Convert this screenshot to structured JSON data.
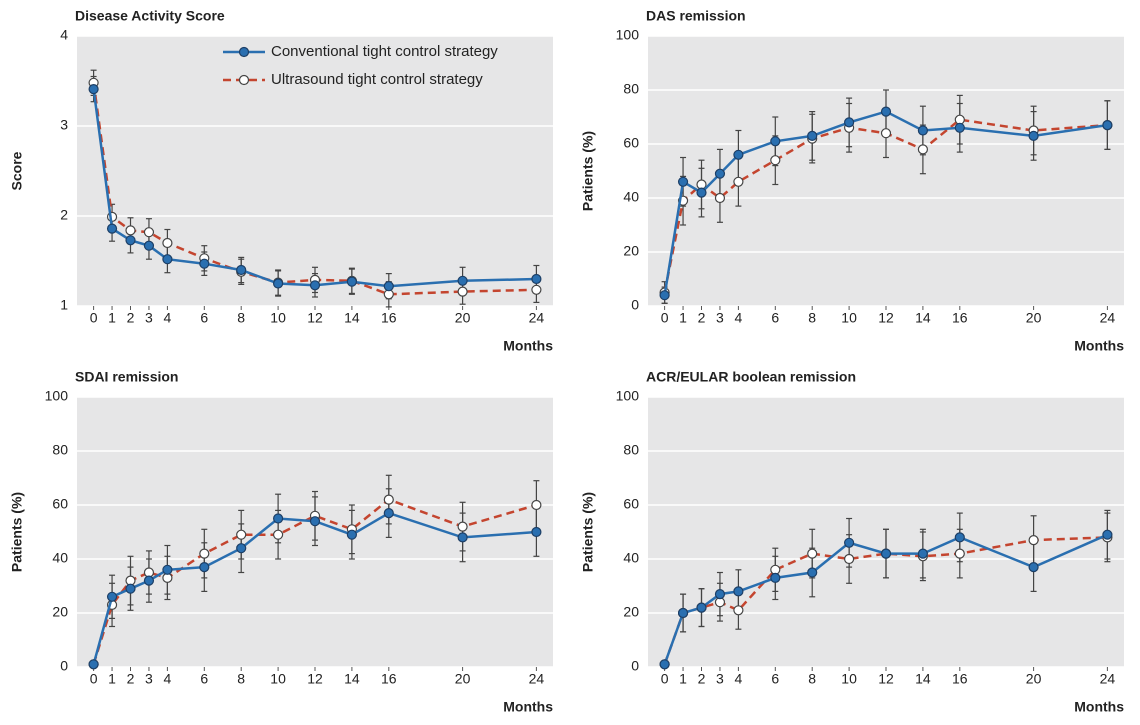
{
  "chart_data": [
    {
      "type": "line",
      "title": "Disease Activity Score",
      "ylabel": "Score",
      "xlabel": "Months",
      "x": [
        0,
        1,
        2,
        3,
        4,
        6,
        8,
        10,
        12,
        14,
        16,
        20,
        24
      ],
      "xticks": [
        0,
        1,
        2,
        3,
        4,
        6,
        8,
        10,
        12,
        14,
        16,
        20,
        24
      ],
      "xlim": [
        -0.9,
        24.9
      ],
      "ylim": [
        1,
        4
      ],
      "yticks": [
        1,
        2,
        3,
        4
      ],
      "grid": true,
      "legend": "upper right",
      "series": [
        {
          "name": "Conventional tight control strategy",
          "color": "#2a6fb0",
          "dash": false,
          "marker": "filled",
          "values": [
            3.41,
            1.86,
            1.73,
            1.67,
            1.52,
            1.47,
            1.4,
            1.25,
            1.23,
            1.27,
            1.22,
            1.28,
            1.3
          ],
          "errors": [
            0.14,
            0.14,
            0.14,
            0.15,
            0.15,
            0.13,
            0.14,
            0.14,
            0.13,
            0.14,
            0.14,
            0.15,
            0.15
          ]
        },
        {
          "name": "Ultrasound tight control strategy",
          "color": "#c4452f",
          "dash": true,
          "marker": "open",
          "values": [
            3.48,
            1.99,
            1.84,
            1.82,
            1.7,
            1.53,
            1.38,
            1.26,
            1.29,
            1.28,
            1.13,
            1.16,
            1.18
          ],
          "errors": [
            0.14,
            0.14,
            0.14,
            0.15,
            0.15,
            0.14,
            0.14,
            0.14,
            0.14,
            0.14,
            0.14,
            0.14,
            0.14
          ]
        }
      ]
    },
    {
      "type": "line",
      "title": "DAS remission",
      "ylabel": "Patients (%)",
      "xlabel": "Months",
      "x": [
        0,
        1,
        2,
        3,
        4,
        6,
        8,
        10,
        12,
        14,
        16,
        20,
        24
      ],
      "xticks": [
        0,
        1,
        2,
        3,
        4,
        6,
        8,
        10,
        12,
        14,
        16,
        20,
        24
      ],
      "xlim": [
        -0.9,
        24.9
      ],
      "ylim": [
        0,
        100
      ],
      "yticks": [
        0,
        20,
        40,
        60,
        80,
        100
      ],
      "grid": true,
      "series": [
        {
          "color": "#2a6fb0",
          "dash": false,
          "marker": "filled",
          "values": [
            4,
            46,
            42,
            49,
            56,
            61,
            63,
            68,
            72,
            65,
            66,
            63,
            67
          ],
          "errors": [
            3,
            9,
            9,
            9,
            9,
            9,
            9,
            9,
            8,
            9,
            9,
            9,
            9
          ]
        },
        {
          "color": "#c4452f",
          "dash": true,
          "marker": "open",
          "values": [
            5,
            39,
            45,
            40,
            46,
            54,
            62,
            66,
            64,
            58,
            69,
            65,
            67
          ],
          "errors": [
            4,
            9,
            9,
            9,
            9,
            9,
            9,
            9,
            9,
            9,
            9,
            9,
            9
          ]
        }
      ]
    },
    {
      "type": "line",
      "title": "SDAI remission",
      "ylabel": "Patients (%)",
      "xlabel": "Months",
      "x": [
        0,
        1,
        2,
        3,
        4,
        6,
        8,
        10,
        12,
        14,
        16,
        20,
        24
      ],
      "xticks": [
        0,
        1,
        2,
        3,
        4,
        6,
        8,
        10,
        12,
        14,
        16,
        20,
        24
      ],
      "xlim": [
        -0.9,
        24.9
      ],
      "ylim": [
        0,
        100
      ],
      "yticks": [
        0,
        20,
        40,
        60,
        80,
        100
      ],
      "grid": true,
      "series": [
        {
          "color": "#2a6fb0",
          "dash": false,
          "marker": "filled",
          "values": [
            1,
            26,
            29,
            32,
            36,
            37,
            44,
            55,
            54,
            49,
            57,
            48,
            50
          ],
          "errors": [
            1,
            8,
            8,
            8,
            9,
            9,
            9,
            9,
            9,
            9,
            9,
            9,
            9
          ]
        },
        {
          "color": "#c4452f",
          "dash": true,
          "marker": "open",
          "values": [
            1,
            23,
            32,
            35,
            33,
            42,
            49,
            49,
            56,
            51,
            62,
            52,
            60
          ],
          "errors": [
            1,
            8,
            9,
            8,
            8,
            9,
            9,
            9,
            9,
            9,
            9,
            9,
            9
          ]
        }
      ]
    },
    {
      "type": "line",
      "title": "ACR/EULAR boolean remission",
      "ylabel": "Patients (%)",
      "xlabel": "Months",
      "x": [
        0,
        1,
        2,
        3,
        4,
        6,
        8,
        10,
        12,
        14,
        16,
        20,
        24
      ],
      "xticks": [
        0,
        1,
        2,
        3,
        4,
        6,
        8,
        10,
        12,
        14,
        16,
        20,
        24
      ],
      "xlim": [
        -0.9,
        24.9
      ],
      "ylim": [
        0,
        100
      ],
      "yticks": [
        0,
        20,
        40,
        60,
        80,
        100
      ],
      "grid": true,
      "series": [
        {
          "color": "#2a6fb0",
          "dash": false,
          "marker": "filled",
          "values": [
            1,
            20,
            22,
            27,
            28,
            33,
            35,
            46,
            42,
            42,
            48,
            37,
            49
          ],
          "errors": [
            1,
            7,
            7,
            8,
            8,
            8,
            9,
            9,
            9,
            9,
            9,
            9,
            9
          ]
        },
        {
          "color": "#c4452f",
          "dash": true,
          "marker": "open",
          "values": [
            1,
            20,
            22,
            24,
            21,
            36,
            42,
            40,
            42,
            41,
            42,
            47,
            48
          ],
          "errors": [
            1,
            7,
            7,
            7,
            7,
            8,
            9,
            9,
            9,
            9,
            9,
            9,
            9
          ]
        }
      ]
    }
  ]
}
